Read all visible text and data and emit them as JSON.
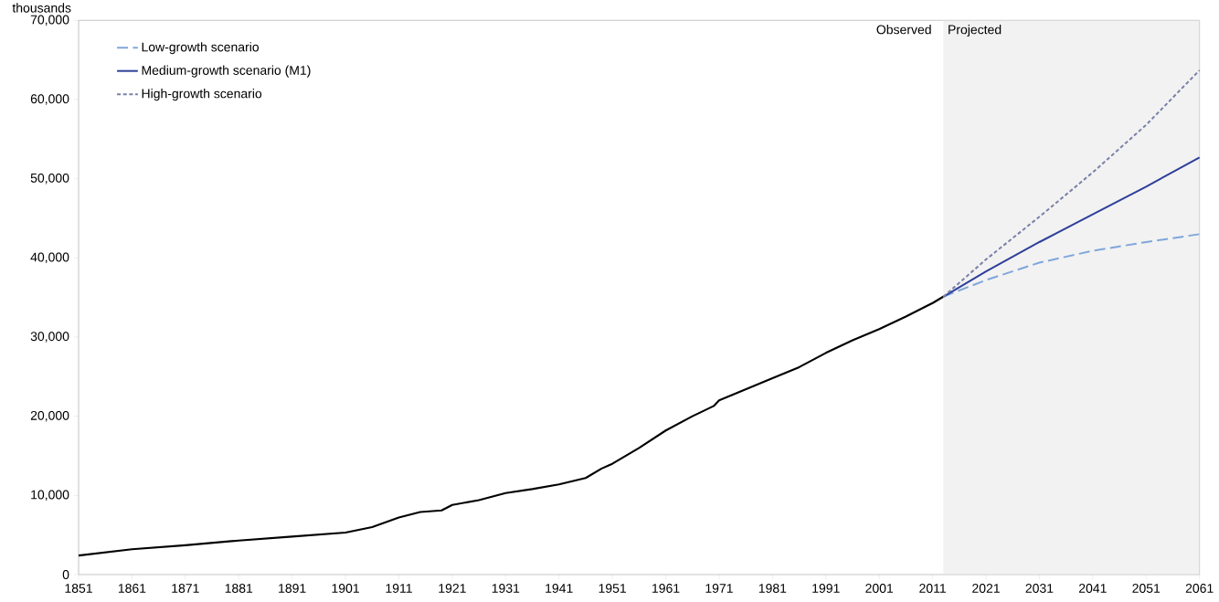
{
  "chart_data": {
    "type": "line",
    "ylabel": "thousands",
    "xlim": [
      1851,
      2061
    ],
    "xticks": [
      1851,
      1861,
      1871,
      1881,
      1891,
      1901,
      1911,
      1921,
      1931,
      1941,
      1951,
      1961,
      1971,
      1981,
      1991,
      2001,
      2011,
      2021,
      2031,
      2041,
      2051,
      2061
    ],
    "ylim": [
      0,
      70000
    ],
    "yticks": [
      0,
      {
        "value": 10000,
        "label": "10,000"
      },
      {
        "value": 20000,
        "label": "20,000"
      },
      {
        "value": 30000,
        "label": "30,000"
      },
      {
        "value": 40000,
        "label": "40,000"
      },
      {
        "value": 50000,
        "label": "50,000"
      },
      {
        "value": 60000,
        "label": "60,000"
      },
      {
        "value": 70000,
        "label": "70,000"
      }
    ],
    "grid": false,
    "legend": "top left",
    "bands": [
      {
        "axis": "x",
        "from": 2013,
        "to": 2061,
        "label": "Projected",
        "color": "#f2f2f2"
      }
    ],
    "annotations": [
      "Observed"
    ],
    "series": [
      {
        "color": "#000000",
        "line_style": "solid",
        "x": [
          1851,
          1861,
          1871,
          1881,
          1891,
          1901,
          1906,
          1911,
          1915,
          1919,
          1921,
          1926,
          1931,
          1936,
          1941,
          1946,
          1949,
          1951,
          1956,
          1961,
          1966,
          1970,
          1971,
          1976,
          1981,
          1986,
          1991,
          1996,
          2001,
          2006,
          2011,
          2013
        ],
        "values": [
          2400,
          3200,
          3700,
          4300,
          4800,
          5300,
          6000,
          7200,
          7900,
          8100,
          8800,
          9400,
          10300,
          10800,
          11400,
          12200,
          13400,
          14000,
          16000,
          18200,
          20000,
          21300,
          22000,
          23400,
          24800,
          26200,
          28000,
          29600,
          31000,
          32600,
          34300,
          35100
        ]
      },
      {
        "name": "Low-growth scenario",
        "color": "#7fa6dc",
        "line_style": "dashed",
        "x": [
          2013,
          2021,
          2031,
          2041,
          2051,
          2061
        ],
        "values": [
          35100,
          37200,
          39400,
          40900,
          42000,
          43000
        ]
      },
      {
        "name": "Medium-growth scenario (M1)",
        "color": "#2e3f9a",
        "line_style": "solid",
        "x": [
          2013,
          2021,
          2031,
          2041,
          2051,
          2061
        ],
        "values": [
          35100,
          38300,
          42000,
          45500,
          49000,
          52700
        ]
      },
      {
        "name": "High-growth scenario",
        "color": "#7a80a8",
        "line_style": "dotted",
        "x": [
          2013,
          2021,
          2031,
          2041,
          2051,
          2061
        ],
        "values": [
          35100,
          39800,
          45200,
          50800,
          56800,
          63700
        ]
      }
    ]
  }
}
